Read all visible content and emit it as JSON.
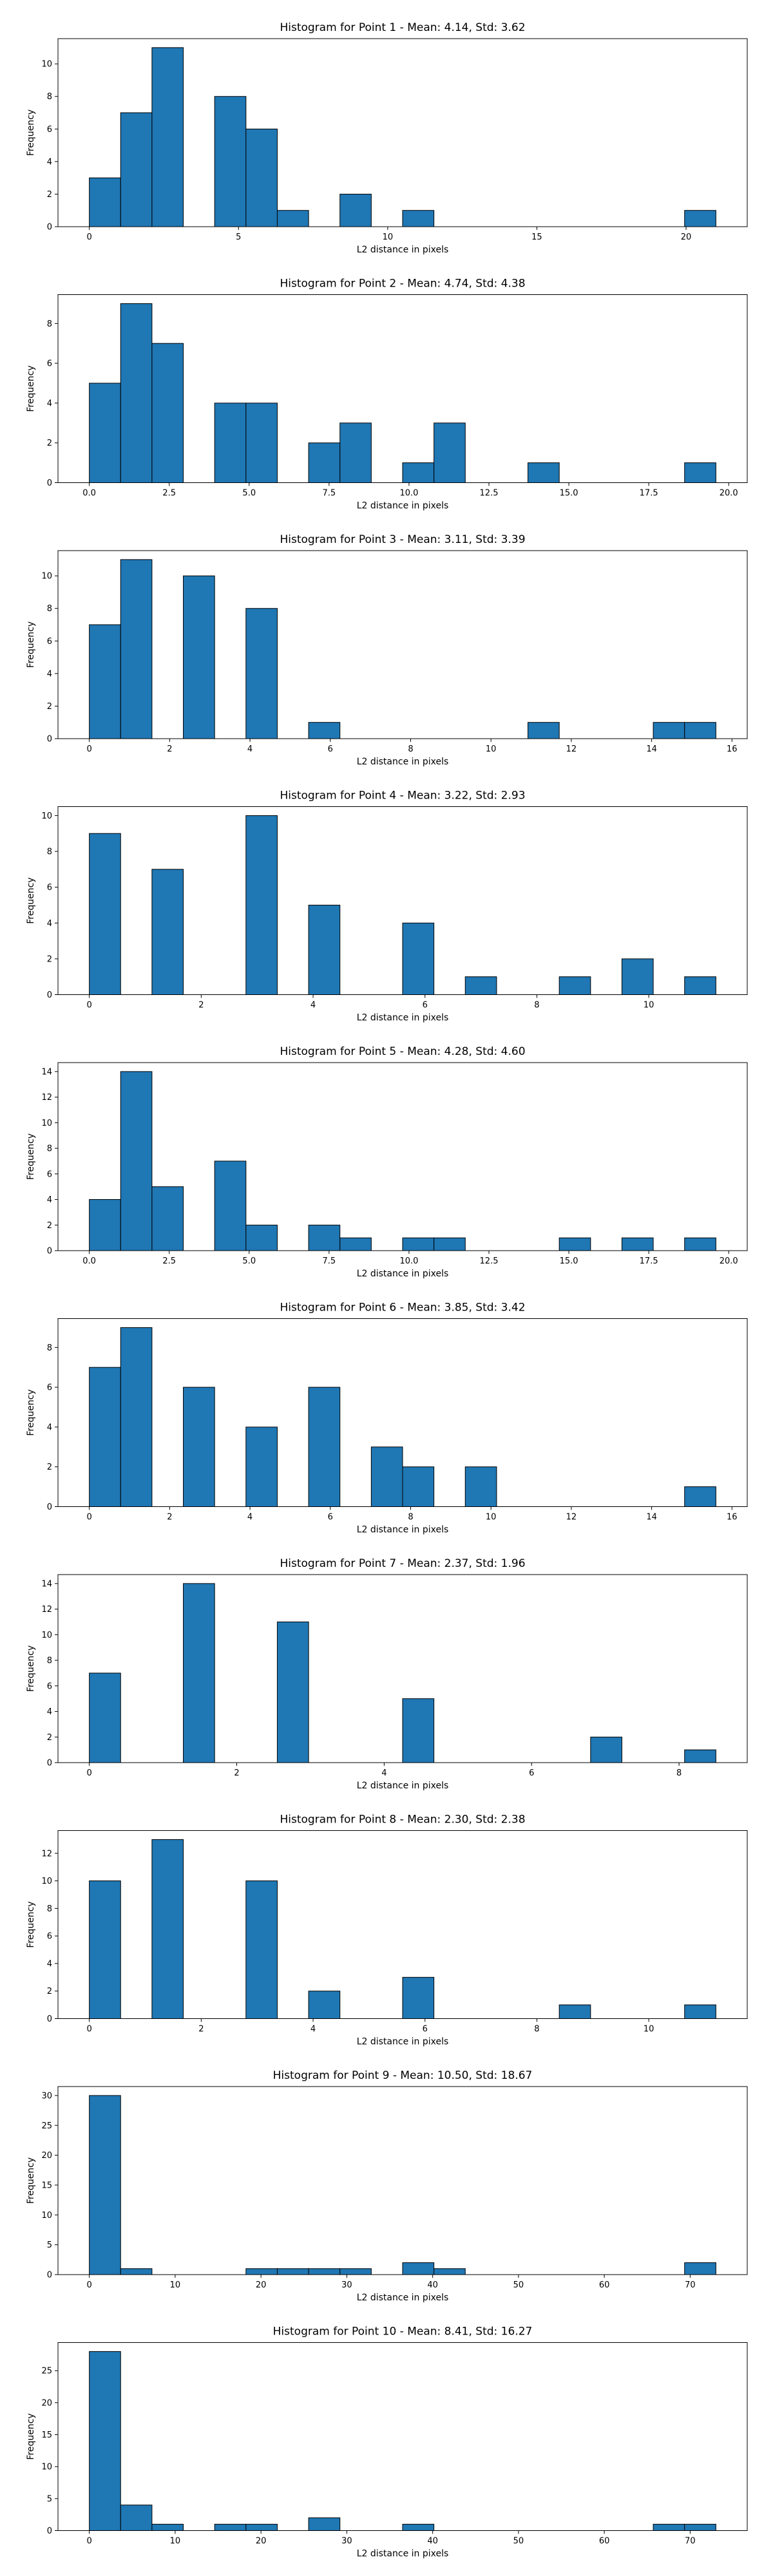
{
  "style": {
    "bar_color": "#1f77b4",
    "edge_color": "#000000",
    "background": "#ffffff"
  },
  "chart_data": [
    {
      "type": "bar",
      "title": "Histogram for Point 1 - Mean: 4.14, Std: 3.62",
      "xlabel": "L2 distance in pixels",
      "ylabel": "Frequency",
      "xlim": [
        -1.05,
        22.05
      ],
      "ylim": [
        0,
        11.55
      ],
      "xticks": [
        0,
        5,
        10,
        15,
        20
      ],
      "xtick_labels": [
        "0",
        "5",
        "10",
        "15",
        "20"
      ],
      "yticks": [
        0,
        2,
        4,
        6,
        8,
        10
      ],
      "ytick_labels": [
        "0",
        "2",
        "4",
        "6",
        "8",
        "10"
      ],
      "grid": false,
      "bins": [
        {
          "x0": 0.0,
          "x1": 1.05,
          "count": 3
        },
        {
          "x0": 1.05,
          "x1": 2.1,
          "count": 7
        },
        {
          "x0": 2.1,
          "x1": 3.15,
          "count": 11
        },
        {
          "x0": 4.2,
          "x1": 5.25,
          "count": 8
        },
        {
          "x0": 5.25,
          "x1": 6.3,
          "count": 6
        },
        {
          "x0": 6.3,
          "x1": 7.35,
          "count": 1
        },
        {
          "x0": 8.4,
          "x1": 9.45,
          "count": 2
        },
        {
          "x0": 10.5,
          "x1": 11.55,
          "count": 1
        },
        {
          "x0": 19.95,
          "x1": 21.0,
          "count": 1
        }
      ]
    },
    {
      "type": "bar",
      "title": "Histogram for Point 2 - Mean: 4.74, Std: 4.38",
      "xlabel": "L2 distance in pixels",
      "ylabel": "Frequency",
      "xlim": [
        -0.98,
        20.58
      ],
      "ylim": [
        0,
        9.45
      ],
      "xticks": [
        0,
        2.5,
        5,
        7.5,
        10,
        12.5,
        15,
        17.5,
        20
      ],
      "xtick_labels": [
        "0.0",
        "2.5",
        "5.0",
        "7.5",
        "10.0",
        "12.5",
        "15.0",
        "17.5",
        "20.0"
      ],
      "yticks": [
        0,
        2,
        4,
        6,
        8
      ],
      "ytick_labels": [
        "0",
        "2",
        "4",
        "6",
        "8"
      ],
      "grid": false,
      "bins": [
        {
          "x0": 0.0,
          "x1": 0.98,
          "count": 5
        },
        {
          "x0": 0.98,
          "x1": 1.96,
          "count": 9
        },
        {
          "x0": 1.96,
          "x1": 2.94,
          "count": 7
        },
        {
          "x0": 3.92,
          "x1": 4.9,
          "count": 4
        },
        {
          "x0": 4.9,
          "x1": 5.88,
          "count": 4
        },
        {
          "x0": 6.86,
          "x1": 7.84,
          "count": 2
        },
        {
          "x0": 7.84,
          "x1": 8.82,
          "count": 3
        },
        {
          "x0": 9.8,
          "x1": 10.78,
          "count": 1
        },
        {
          "x0": 10.78,
          "x1": 11.76,
          "count": 3
        },
        {
          "x0": 13.72,
          "x1": 14.7,
          "count": 1
        },
        {
          "x0": 18.62,
          "x1": 19.6,
          "count": 1
        }
      ]
    },
    {
      "type": "bar",
      "title": "Histogram for Point 3 - Mean: 3.11, Std: 3.39",
      "xlabel": "L2 distance in pixels",
      "ylabel": "Frequency",
      "xlim": [
        -0.78,
        16.38
      ],
      "ylim": [
        0,
        11.55
      ],
      "xticks": [
        0,
        2,
        4,
        6,
        8,
        10,
        12,
        14,
        16
      ],
      "xtick_labels": [
        "0",
        "2",
        "4",
        "6",
        "8",
        "10",
        "12",
        "14",
        "16"
      ],
      "yticks": [
        0,
        2,
        4,
        6,
        8,
        10
      ],
      "ytick_labels": [
        "0",
        "2",
        "4",
        "6",
        "8",
        "10"
      ],
      "grid": false,
      "bins": [
        {
          "x0": 0.0,
          "x1": 0.78,
          "count": 7
        },
        {
          "x0": 0.78,
          "x1": 1.56,
          "count": 11
        },
        {
          "x0": 2.34,
          "x1": 3.12,
          "count": 10
        },
        {
          "x0": 3.9,
          "x1": 4.68,
          "count": 8
        },
        {
          "x0": 5.46,
          "x1": 6.24,
          "count": 1
        },
        {
          "x0": 10.92,
          "x1": 11.7,
          "count": 1
        },
        {
          "x0": 14.04,
          "x1": 14.82,
          "count": 1
        },
        {
          "x0": 14.82,
          "x1": 15.6,
          "count": 1
        }
      ]
    },
    {
      "type": "bar",
      "title": "Histogram for Point 4 - Mean: 3.22, Std: 2.93",
      "xlabel": "L2 distance in pixels",
      "ylabel": "Frequency",
      "xlim": [
        -0.56,
        11.76
      ],
      "ylim": [
        0,
        10.5
      ],
      "xticks": [
        0,
        2,
        4,
        6,
        8,
        10
      ],
      "xtick_labels": [
        "0",
        "2",
        "4",
        "6",
        "8",
        "10"
      ],
      "yticks": [
        0,
        2,
        4,
        6,
        8,
        10
      ],
      "ytick_labels": [
        "0",
        "2",
        "4",
        "6",
        "8",
        "10"
      ],
      "grid": false,
      "bins": [
        {
          "x0": 0.0,
          "x1": 0.56,
          "count": 9
        },
        {
          "x0": 1.12,
          "x1": 1.68,
          "count": 7
        },
        {
          "x0": 2.8,
          "x1": 3.36,
          "count": 10
        },
        {
          "x0": 3.92,
          "x1": 4.48,
          "count": 5
        },
        {
          "x0": 5.6,
          "x1": 6.16,
          "count": 4
        },
        {
          "x0": 6.72,
          "x1": 7.28,
          "count": 1
        },
        {
          "x0": 8.4,
          "x1": 8.96,
          "count": 1
        },
        {
          "x0": 9.52,
          "x1": 10.08,
          "count": 2
        },
        {
          "x0": 10.64,
          "x1": 11.2,
          "count": 1
        }
      ]
    },
    {
      "type": "bar",
      "title": "Histogram for Point 5 - Mean: 4.28, Std: 4.60",
      "xlabel": "L2 distance in pixels",
      "ylabel": "Frequency",
      "xlim": [
        -0.98,
        20.58
      ],
      "ylim": [
        0,
        14.7
      ],
      "xticks": [
        0,
        2.5,
        5,
        7.5,
        10,
        12.5,
        15,
        17.5,
        20
      ],
      "xtick_labels": [
        "0.0",
        "2.5",
        "5.0",
        "7.5",
        "10.0",
        "12.5",
        "15.0",
        "17.5",
        "20.0"
      ],
      "yticks": [
        0,
        2,
        4,
        6,
        8,
        10,
        12,
        14
      ],
      "ytick_labels": [
        "0",
        "2",
        "4",
        "6",
        "8",
        "10",
        "12",
        "14"
      ],
      "grid": false,
      "bins": [
        {
          "x0": 0.0,
          "x1": 0.98,
          "count": 4
        },
        {
          "x0": 0.98,
          "x1": 1.96,
          "count": 14
        },
        {
          "x0": 1.96,
          "x1": 2.94,
          "count": 5
        },
        {
          "x0": 3.92,
          "x1": 4.9,
          "count": 7
        },
        {
          "x0": 4.9,
          "x1": 5.88,
          "count": 2
        },
        {
          "x0": 6.86,
          "x1": 7.84,
          "count": 2
        },
        {
          "x0": 7.84,
          "x1": 8.82,
          "count": 1
        },
        {
          "x0": 9.8,
          "x1": 10.78,
          "count": 1
        },
        {
          "x0": 10.78,
          "x1": 11.76,
          "count": 1
        },
        {
          "x0": 14.7,
          "x1": 15.68,
          "count": 1
        },
        {
          "x0": 16.66,
          "x1": 17.64,
          "count": 1
        },
        {
          "x0": 18.62,
          "x1": 19.6,
          "count": 1
        }
      ]
    },
    {
      "type": "bar",
      "title": "Histogram for Point 6 - Mean: 3.85, Std: 3.42",
      "xlabel": "L2 distance in pixels",
      "ylabel": "Frequency",
      "xlim": [
        -0.78,
        16.38
      ],
      "ylim": [
        0,
        9.45
      ],
      "xticks": [
        0,
        2,
        4,
        6,
        8,
        10,
        12,
        14,
        16
      ],
      "xtick_labels": [
        "0",
        "2",
        "4",
        "6",
        "8",
        "10",
        "12",
        "14",
        "16"
      ],
      "yticks": [
        0,
        2,
        4,
        6,
        8
      ],
      "ytick_labels": [
        "0",
        "2",
        "4",
        "6",
        "8"
      ],
      "grid": false,
      "bins": [
        {
          "x0": 0.0,
          "x1": 0.78,
          "count": 7
        },
        {
          "x0": 0.78,
          "x1": 1.56,
          "count": 9
        },
        {
          "x0": 2.34,
          "x1": 3.12,
          "count": 6
        },
        {
          "x0": 3.9,
          "x1": 4.68,
          "count": 4
        },
        {
          "x0": 5.46,
          "x1": 6.24,
          "count": 6
        },
        {
          "x0": 7.02,
          "x1": 7.8,
          "count": 3
        },
        {
          "x0": 7.8,
          "x1": 8.58,
          "count": 2
        },
        {
          "x0": 9.36,
          "x1": 10.14,
          "count": 2
        },
        {
          "x0": 14.82,
          "x1": 15.6,
          "count": 1
        }
      ]
    },
    {
      "type": "bar",
      "title": "Histogram for Point 7 - Mean: 2.37, Std: 1.96",
      "xlabel": "L2 distance in pixels",
      "ylabel": "Frequency",
      "xlim": [
        -0.425,
        8.925
      ],
      "ylim": [
        0,
        14.7
      ],
      "xticks": [
        0,
        2,
        4,
        6,
        8
      ],
      "xtick_labels": [
        "0",
        "2",
        "4",
        "6",
        "8"
      ],
      "yticks": [
        0,
        2,
        4,
        6,
        8,
        10,
        12,
        14
      ],
      "ytick_labels": [
        "0",
        "2",
        "4",
        "6",
        "8",
        "10",
        "12",
        "14"
      ],
      "grid": false,
      "bins": [
        {
          "x0": 0.0,
          "x1": 0.425,
          "count": 7
        },
        {
          "x0": 1.275,
          "x1": 1.7,
          "count": 14
        },
        {
          "x0": 2.55,
          "x1": 2.975,
          "count": 11
        },
        {
          "x0": 4.25,
          "x1": 4.675,
          "count": 5
        },
        {
          "x0": 6.8,
          "x1": 7.225,
          "count": 2
        },
        {
          "x0": 8.075,
          "x1": 8.5,
          "count": 1
        }
      ]
    },
    {
      "type": "bar",
      "title": "Histogram for Point 8 - Mean: 2.30, Std: 2.38",
      "xlabel": "L2 distance in pixels",
      "ylabel": "Frequency",
      "xlim": [
        -0.56,
        11.76
      ],
      "ylim": [
        0,
        13.65
      ],
      "xticks": [
        0,
        2,
        4,
        6,
        8,
        10
      ],
      "xtick_labels": [
        "0",
        "2",
        "4",
        "6",
        "8",
        "10"
      ],
      "yticks": [
        0,
        2,
        4,
        6,
        8,
        10,
        12
      ],
      "ytick_labels": [
        "0",
        "2",
        "4",
        "6",
        "8",
        "10",
        "12"
      ],
      "grid": false,
      "bins": [
        {
          "x0": 0.0,
          "x1": 0.56,
          "count": 10
        },
        {
          "x0": 1.12,
          "x1": 1.68,
          "count": 13
        },
        {
          "x0": 2.8,
          "x1": 3.36,
          "count": 10
        },
        {
          "x0": 3.92,
          "x1": 4.48,
          "count": 2
        },
        {
          "x0": 5.6,
          "x1": 6.16,
          "count": 3
        },
        {
          "x0": 8.4,
          "x1": 8.96,
          "count": 1
        },
        {
          "x0": 10.64,
          "x1": 11.2,
          "count": 1
        }
      ]
    },
    {
      "type": "bar",
      "title": "Histogram for Point 9 - Mean: 10.50, Std: 18.67",
      "xlabel": "L2 distance in pixels",
      "ylabel": "Frequency",
      "xlim": [
        -3.65,
        76.65
      ],
      "ylim": [
        0,
        31.5
      ],
      "xticks": [
        0,
        10,
        20,
        30,
        40,
        50,
        60,
        70
      ],
      "xtick_labels": [
        "0",
        "10",
        "20",
        "30",
        "40",
        "50",
        "60",
        "70"
      ],
      "yticks": [
        0,
        5,
        10,
        15,
        20,
        25,
        30
      ],
      "ytick_labels": [
        "0",
        "5",
        "10",
        "15",
        "20",
        "25",
        "30"
      ],
      "grid": false,
      "bins": [
        {
          "x0": 0.0,
          "x1": 3.65,
          "count": 30
        },
        {
          "x0": 3.65,
          "x1": 7.3,
          "count": 1
        },
        {
          "x0": 18.25,
          "x1": 21.9,
          "count": 1
        },
        {
          "x0": 21.9,
          "x1": 25.55,
          "count": 1
        },
        {
          "x0": 25.55,
          "x1": 29.2,
          "count": 1
        },
        {
          "x0": 29.2,
          "x1": 32.85,
          "count": 1
        },
        {
          "x0": 36.5,
          "x1": 40.15,
          "count": 2
        },
        {
          "x0": 40.15,
          "x1": 43.8,
          "count": 1
        },
        {
          "x0": 69.35,
          "x1": 73.0,
          "count": 2
        }
      ]
    },
    {
      "type": "bar",
      "title": "Histogram for Point 10 - Mean: 8.41, Std: 16.27",
      "xlabel": "L2 distance in pixels",
      "ylabel": "Frequency",
      "xlim": [
        -3.65,
        76.65
      ],
      "ylim": [
        0,
        29.4
      ],
      "xticks": [
        0,
        10,
        20,
        30,
        40,
        50,
        60,
        70
      ],
      "xtick_labels": [
        "0",
        "10",
        "20",
        "30",
        "40",
        "50",
        "60",
        "70"
      ],
      "yticks": [
        0,
        5,
        10,
        15,
        20,
        25
      ],
      "ytick_labels": [
        "0",
        "5",
        "10",
        "15",
        "20",
        "25"
      ],
      "grid": false,
      "bins": [
        {
          "x0": 0.0,
          "x1": 3.65,
          "count": 28
        },
        {
          "x0": 3.65,
          "x1": 7.3,
          "count": 4
        },
        {
          "x0": 7.3,
          "x1": 10.95,
          "count": 1
        },
        {
          "x0": 14.6,
          "x1": 18.25,
          "count": 1
        },
        {
          "x0": 18.25,
          "x1": 21.9,
          "count": 1
        },
        {
          "x0": 25.55,
          "x1": 29.2,
          "count": 2
        },
        {
          "x0": 36.5,
          "x1": 40.15,
          "count": 1
        },
        {
          "x0": 65.7,
          "x1": 69.35,
          "count": 1
        },
        {
          "x0": 69.35,
          "x1": 73.0,
          "count": 1
        }
      ]
    }
  ]
}
